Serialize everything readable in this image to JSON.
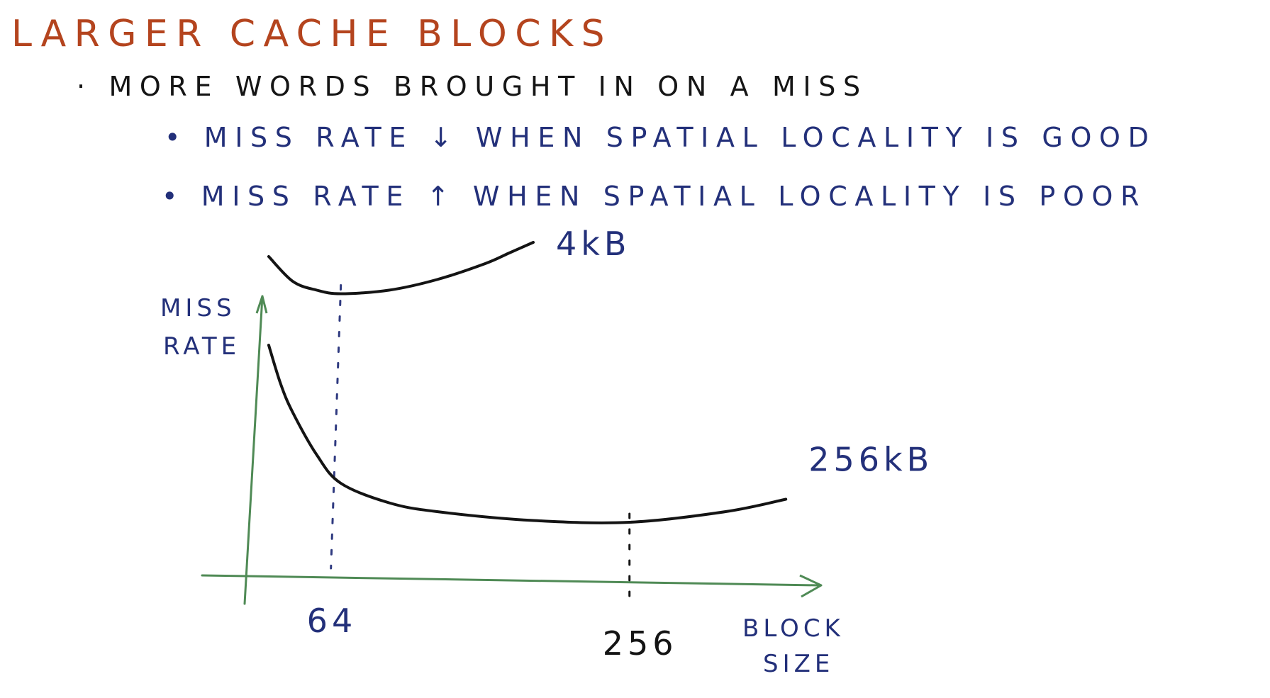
{
  "title": "LARGER CACHE BLOCKS",
  "bullets": [
    {
      "text": "· MORE WORDS BROUGHT IN ON A MISS"
    },
    {
      "text": "• MISS RATE ↓ WHEN SPATIAL LOCALITY IS GOOD"
    },
    {
      "text": "• MISS RATE ↑ WHEN SPATIAL LOCALITY IS POOR"
    }
  ],
  "colors": {
    "title": "#b4441e",
    "primary_text": "#151515",
    "note_text": "#23307a",
    "axis": "#4f8a55",
    "curve": "#141414",
    "guide": "#2f3a80"
  },
  "chart_data": {
    "type": "line",
    "title": "",
    "xlabel": "BLOCK SIZE",
    "ylabel": "MISS RATE",
    "x_ticks": [
      {
        "value": 64,
        "label": "64"
      },
      {
        "value": 256,
        "label": "256"
      }
    ],
    "series": [
      {
        "name": "4kB",
        "points": [
          [
            16,
            9.0
          ],
          [
            32,
            8.3
          ],
          [
            48,
            8.05
          ],
          [
            64,
            7.95
          ],
          [
            96,
            8.05
          ],
          [
            128,
            8.35
          ],
          [
            160,
            8.8
          ],
          [
            176,
            9.1
          ],
          [
            192,
            9.4
          ]
        ]
      },
      {
        "name": "256kB",
        "points": [
          [
            16,
            6.5
          ],
          [
            24,
            5.4
          ],
          [
            32,
            4.6
          ],
          [
            48,
            3.4
          ],
          [
            64,
            2.6
          ],
          [
            96,
            2.05
          ],
          [
            128,
            1.8
          ],
          [
            192,
            1.55
          ],
          [
            256,
            1.5
          ],
          [
            320,
            1.8
          ],
          [
            360,
            2.15
          ]
        ]
      }
    ],
    "guides": [
      {
        "x": 64,
        "series": "4kB"
      },
      {
        "x": 256,
        "series": "256kB"
      }
    ],
    "grid": false,
    "legend": "end-of-line labels"
  }
}
